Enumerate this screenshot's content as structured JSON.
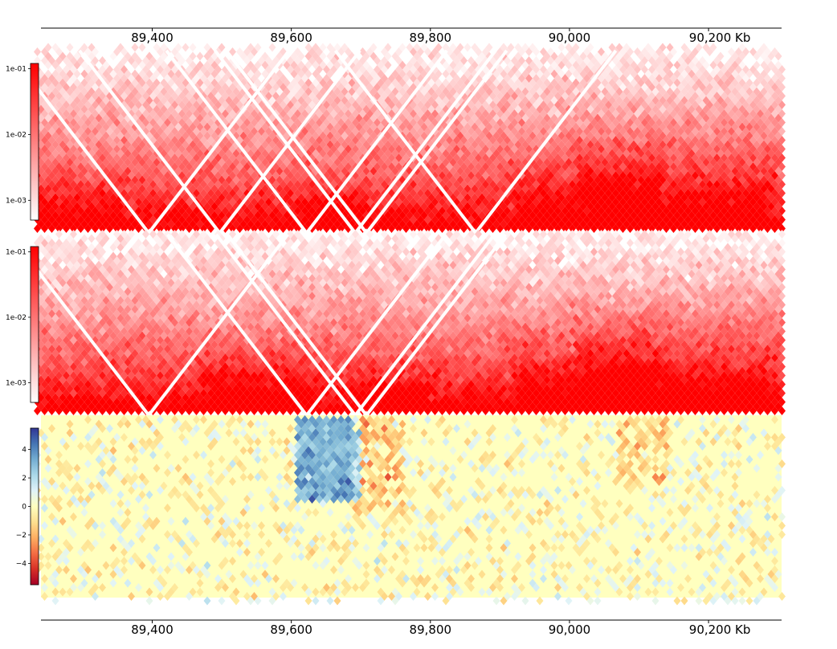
{
  "chart_data": {
    "type": "heatmap",
    "genomic_axis": {
      "unit": "Kb",
      "range": [
        89240,
        90305
      ],
      "ticks": [
        89400,
        89600,
        89800,
        90000,
        90200
      ],
      "tick_labels": [
        "89,400",
        "89,600",
        "89,800",
        "90,000",
        "90,200 Kb"
      ]
    },
    "tracks": [
      {
        "name": "hic-matrix-1",
        "kind": "contact-matrix",
        "scale": "log",
        "colormap": "Reds",
        "colorbar_ticks": [
          "1e-01",
          "1e-02",
          "1e-03"
        ],
        "colorbar_tick_values": [
          0.1,
          0.01,
          0.001
        ],
        "vmin": 0.0005,
        "vmax": 0.12,
        "white_stripe_bins_kb": [
          89395,
          89497,
          89622,
          89692,
          89708,
          89865
        ],
        "domain_hotspots_kb": [
          {
            "center": 89655,
            "width": 40,
            "strength": 0.8
          },
          {
            "center": 90020,
            "width": 90,
            "strength": 0.6
          },
          {
            "center": 90150,
            "width": 120,
            "strength": 0.6
          },
          {
            "center": 89280,
            "width": 60,
            "strength": 0.4
          }
        ]
      },
      {
        "name": "hic-matrix-2",
        "kind": "contact-matrix",
        "scale": "log",
        "colormap": "Reds",
        "colorbar_ticks": [
          "1e-01",
          "1e-02",
          "1e-03"
        ],
        "colorbar_tick_values": [
          0.1,
          0.01,
          0.001
        ],
        "vmin": 0.0005,
        "vmax": 0.12,
        "white_stripe_bins_kb": [
          89395,
          89622,
          89692,
          89708
        ],
        "domain_hotspots_kb": [
          {
            "center": 89550,
            "width": 70,
            "strength": 0.6
          },
          {
            "center": 89740,
            "width": 50,
            "strength": 0.6
          },
          {
            "center": 90020,
            "width": 90,
            "strength": 0.6
          },
          {
            "center": 90150,
            "width": 120,
            "strength": 0.6
          }
        ]
      },
      {
        "name": "log2-ratio-matrix",
        "kind": "difference-matrix",
        "scale": "linear",
        "colormap": "RdYlBu",
        "colorbar_ticks": [
          "4",
          "2",
          "0",
          "−2",
          "−4"
        ],
        "colorbar_tick_values": [
          4,
          2,
          0,
          -2,
          -4
        ],
        "vmin": -5.5,
        "vmax": 5.5
      }
    ]
  }
}
